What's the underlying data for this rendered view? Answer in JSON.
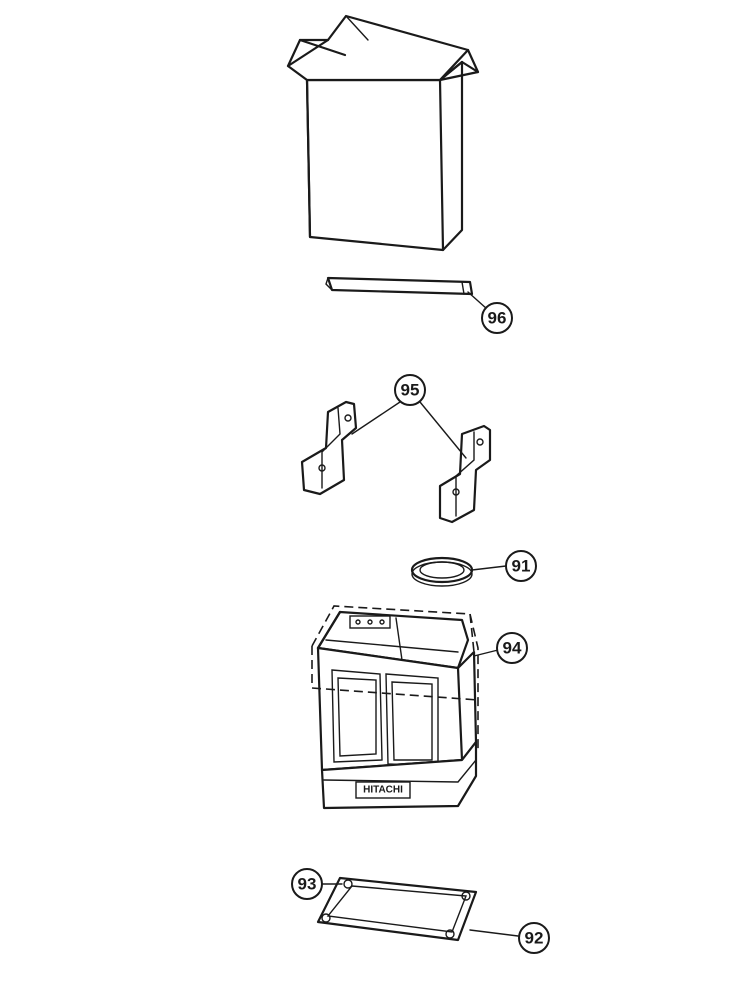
{
  "diagram": {
    "brand_label": "HITACHI",
    "callouts": [
      {
        "id": "96",
        "label": "96",
        "part": "packing-rail"
      },
      {
        "id": "95",
        "label": "95",
        "part": "corner-pads"
      },
      {
        "id": "91",
        "label": "91",
        "part": "ring-gasket"
      },
      {
        "id": "94",
        "label": "94",
        "part": "bag-cover"
      },
      {
        "id": "93",
        "label": "93",
        "part": "base-corner"
      },
      {
        "id": "92",
        "label": "92",
        "part": "base-tray"
      }
    ]
  }
}
